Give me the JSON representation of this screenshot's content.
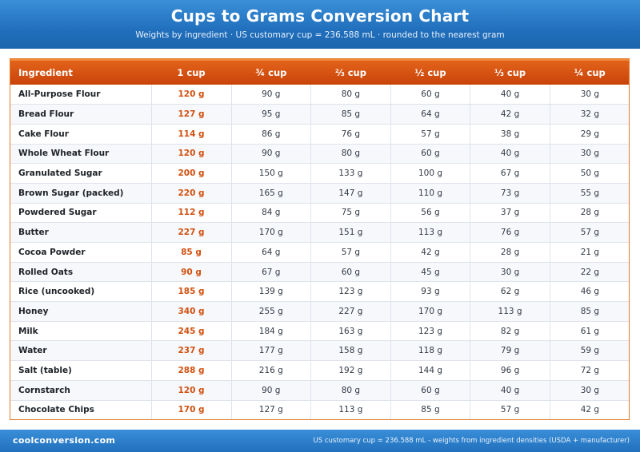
{
  "header": {
    "title": "Cups to Grams Conversion Chart",
    "subtitle": "Weights by ingredient  ·  US customary cup = 236.588 mL  ·  rounded to the nearest gram"
  },
  "table": {
    "columns": [
      "Ingredient",
      "1 cup",
      "¾ cup",
      "⅔ cup",
      "½ cup",
      "⅓ cup",
      "¼ cup"
    ],
    "rows": [
      [
        "All-Purpose Flour",
        "120 g",
        "90 g",
        "80 g",
        "60 g",
        "40 g",
        "30 g"
      ],
      [
        "Bread Flour",
        "127 g",
        "95 g",
        "85 g",
        "64 g",
        "42 g",
        "32 g"
      ],
      [
        "Cake Flour",
        "114 g",
        "86 g",
        "76 g",
        "57 g",
        "38 g",
        "29 g"
      ],
      [
        "Whole Wheat Flour",
        "120 g",
        "90 g",
        "80 g",
        "60 g",
        "40 g",
        "30 g"
      ],
      [
        "Granulated Sugar",
        "200 g",
        "150 g",
        "133 g",
        "100 g",
        "67 g",
        "50 g"
      ],
      [
        "Brown Sugar (packed)",
        "220 g",
        "165 g",
        "147 g",
        "110 g",
        "73 g",
        "55 g"
      ],
      [
        "Powdered Sugar",
        "112 g",
        "84 g",
        "75 g",
        "56 g",
        "37 g",
        "28 g"
      ],
      [
        "Butter",
        "227 g",
        "170 g",
        "151 g",
        "113 g",
        "76 g",
        "57 g"
      ],
      [
        "Cocoa Powder",
        "85 g",
        "64 g",
        "57 g",
        "42 g",
        "28 g",
        "21 g"
      ],
      [
        "Rolled Oats",
        "90 g",
        "67 g",
        "60 g",
        "45 g",
        "30 g",
        "22 g"
      ],
      [
        "Rice (uncooked)",
        "185 g",
        "139 g",
        "123 g",
        "93 g",
        "62 g",
        "46 g"
      ],
      [
        "Honey",
        "340 g",
        "255 g",
        "227 g",
        "170 g",
        "113 g",
        "85 g"
      ],
      [
        "Milk",
        "245 g",
        "184 g",
        "163 g",
        "123 g",
        "82 g",
        "61 g"
      ],
      [
        "Water",
        "237 g",
        "177 g",
        "158 g",
        "118 g",
        "79 g",
        "59 g"
      ],
      [
        "Salt (table)",
        "288 g",
        "216 g",
        "192 g",
        "144 g",
        "96 g",
        "72 g"
      ],
      [
        "Cornstarch",
        "120 g",
        "90 g",
        "80 g",
        "60 g",
        "40 g",
        "30 g"
      ],
      [
        "Chocolate Chips",
        "170 g",
        "127 g",
        "113 g",
        "85 g",
        "57 g",
        "42 g"
      ]
    ]
  },
  "footer": {
    "site": "coolconversion.com",
    "note": "US customary cup = 236.588 mL  -  weights from ingredient densities (USDA + manufacturer)"
  },
  "colors": {
    "header_blue": "#2170bd",
    "table_header_orange": "#d2500f",
    "one_cup_accent": "#d2500f"
  }
}
